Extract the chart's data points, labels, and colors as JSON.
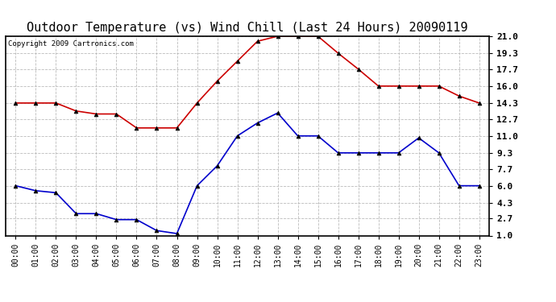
{
  "title": "Outdoor Temperature (vs) Wind Chill (Last 24 Hours) 20090119",
  "copyright": "Copyright 2009 Cartronics.com",
  "x_labels": [
    "00:00",
    "01:00",
    "02:00",
    "03:00",
    "04:00",
    "05:00",
    "06:00",
    "07:00",
    "08:00",
    "09:00",
    "10:00",
    "11:00",
    "12:00",
    "13:00",
    "14:00",
    "15:00",
    "16:00",
    "17:00",
    "18:00",
    "19:00",
    "20:00",
    "21:00",
    "22:00",
    "23:00"
  ],
  "temp": [
    14.3,
    14.3,
    14.3,
    13.5,
    13.2,
    13.2,
    11.8,
    11.8,
    11.8,
    14.3,
    16.5,
    18.5,
    20.5,
    21.0,
    21.0,
    21.0,
    19.3,
    17.7,
    16.0,
    16.0,
    16.0,
    16.0,
    15.0,
    14.3
  ],
  "windchill": [
    6.0,
    5.5,
    5.3,
    3.2,
    3.2,
    2.6,
    2.6,
    1.5,
    1.2,
    6.0,
    8.0,
    11.0,
    12.3,
    13.3,
    11.0,
    11.0,
    9.3,
    9.3,
    9.3,
    9.3,
    10.8,
    9.3,
    6.0,
    6.0
  ],
  "ylim": [
    1.0,
    21.0
  ],
  "yticks": [
    1.0,
    2.7,
    4.3,
    6.0,
    7.7,
    9.3,
    11.0,
    12.7,
    14.3,
    16.0,
    17.7,
    19.3,
    21.0
  ],
  "temp_color": "#cc0000",
  "windchill_color": "#0000cc",
  "bg_color": "#ffffff",
  "grid_color": "#bbbbbb",
  "title_fontsize": 11,
  "copyright_fontsize": 6.5
}
